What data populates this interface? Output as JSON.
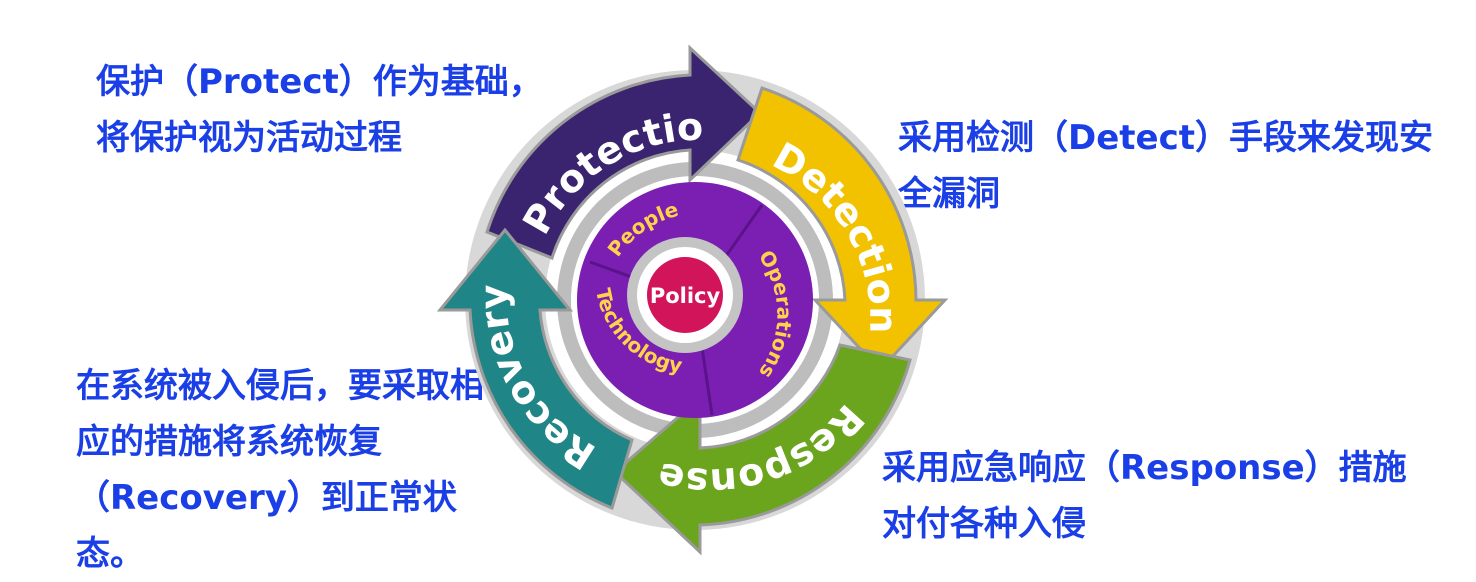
{
  "captions": {
    "protect": "保护（Protect）作为基础，将保护视为活动过程",
    "detect": "采用检测（Detect）手段来发现安全漏洞",
    "recovery": "在系统被入侵后，要采取相应的措施将系统恢复（Recovery）到正常状态。",
    "response": "采用应急响应（Response）措施对付各种入侵"
  },
  "cycle": {
    "outer": [
      {
        "label": "Protection",
        "color": "#3a2470"
      },
      {
        "label": "Detection",
        "color": "#f2c200"
      },
      {
        "label": "Response",
        "color": "#6aa51d"
      },
      {
        "label": "Recovery",
        "color": "#1f8587"
      }
    ],
    "inner": [
      {
        "label": "People"
      },
      {
        "label": "Operations"
      },
      {
        "label": "Technology"
      }
    ],
    "center": "Policy"
  },
  "colors": {
    "caption": "#1a3fe6",
    "inner_ring": "#7a1fb2",
    "center": "#d2145a",
    "ring_gray": "#c8c8c8"
  }
}
